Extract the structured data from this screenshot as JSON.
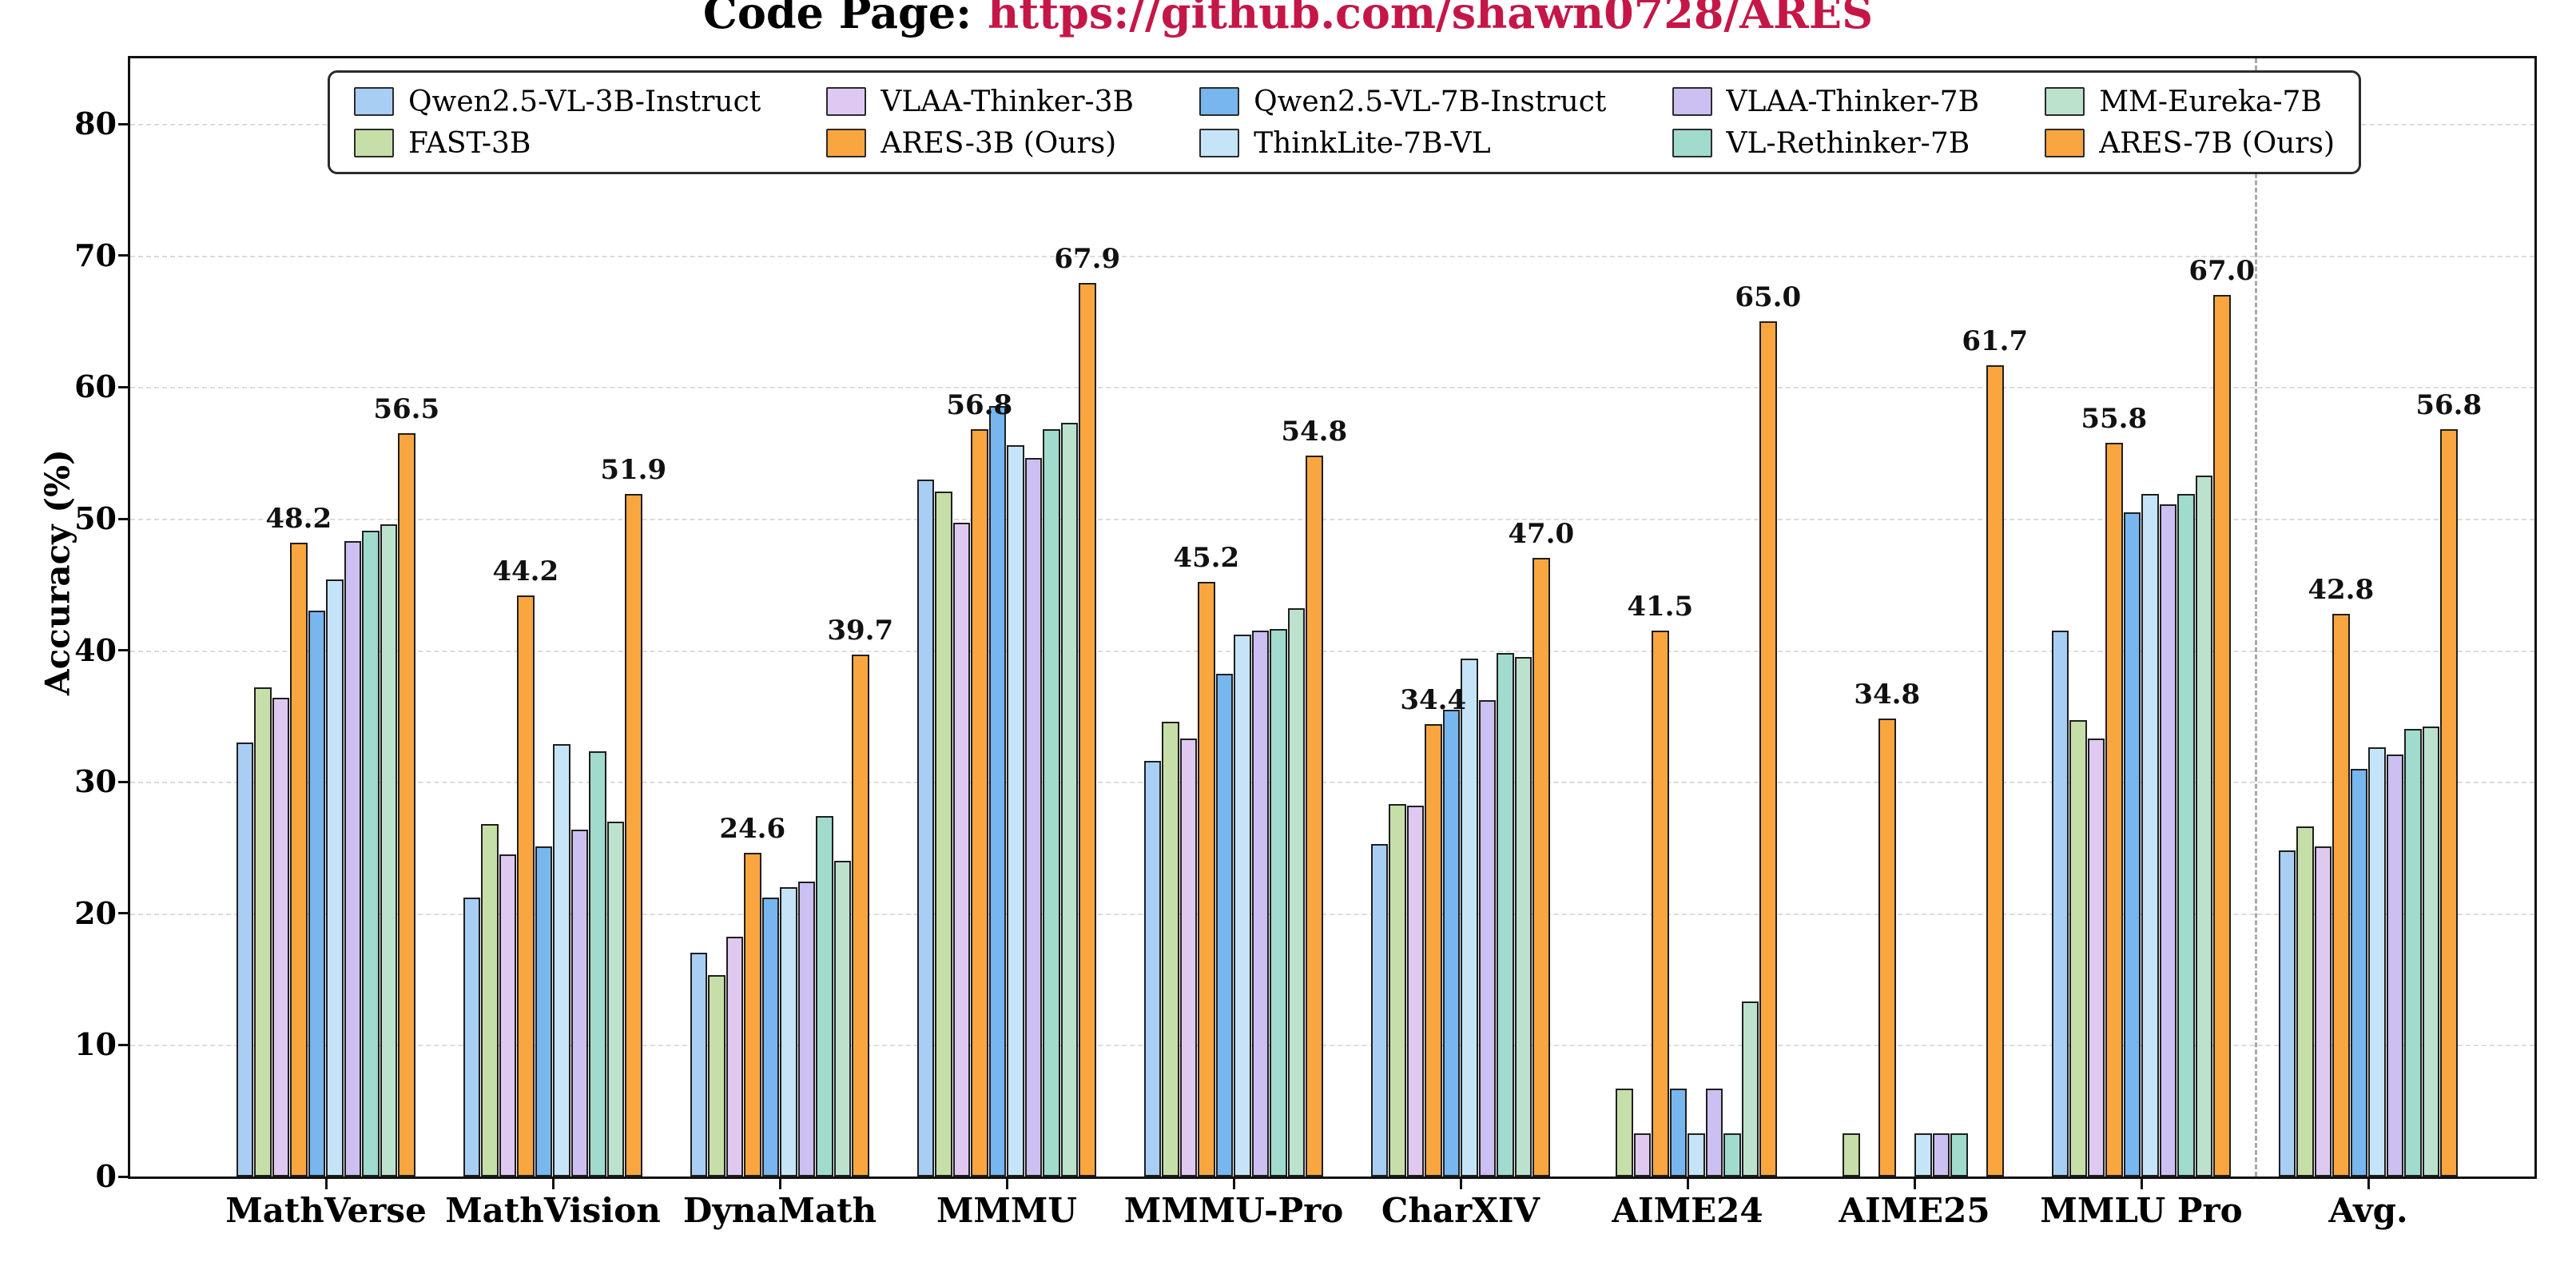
{
  "title": {
    "prefix": "Code Page:",
    "link": "https://github.com/shawn0728/ARES"
  },
  "colors": {
    "title_link": "#C41748",
    "axis": "#111111",
    "grid": "#dcdcdc",
    "separator": "#a8a8a8",
    "bar_edge": "#1f1f1f"
  },
  "chart_data": {
    "type": "bar",
    "title": "Code Page: https://github.com/shawn0728/ARES",
    "ylabel": "Accuracy (%)",
    "ylim": [
      0,
      85
    ],
    "yticks": [
      0,
      10,
      20,
      30,
      40,
      50,
      60,
      70,
      80
    ],
    "grid": true,
    "legend_position": "top-inside",
    "separator_after_category": "MMLU Pro",
    "categories": [
      "MathVerse",
      "MathVision",
      "DynaMath",
      "MMMU",
      "MMMU-Pro",
      "CharXIV",
      "AIME24",
      "AIME25",
      "MMLU Pro",
      "Avg."
    ],
    "series": [
      {
        "name": "Qwen2.5-VL-3B-Instruct",
        "color": "#A9CEF4",
        "annotate": false,
        "values": [
          33.0,
          21.2,
          17.0,
          53.0,
          31.6,
          25.3,
          0.0,
          0.0,
          41.5,
          24.8
        ]
      },
      {
        "name": "FAST-3B",
        "color": "#C6DFA8",
        "annotate": false,
        "values": [
          37.2,
          26.8,
          15.3,
          52.1,
          34.6,
          28.3,
          6.7,
          3.3,
          34.7,
          26.6
        ]
      },
      {
        "name": "VLAA-Thinker-3B",
        "color": "#DFC9F0",
        "annotate": false,
        "values": [
          36.4,
          24.5,
          18.2,
          49.7,
          33.3,
          28.2,
          3.3,
          0.0,
          33.3,
          25.1
        ]
      },
      {
        "name": "ARES-3B (Ours)",
        "color": "#F9A640",
        "annotate": true,
        "values": [
          48.2,
          44.2,
          24.6,
          56.8,
          45.2,
          34.4,
          41.5,
          34.8,
          55.8,
          42.8
        ]
      },
      {
        "name": "Qwen2.5-VL-7B-Instruct",
        "color": "#77B6EE",
        "annotate": false,
        "values": [
          43.0,
          25.1,
          21.2,
          58.6,
          38.2,
          35.5,
          6.7,
          0.0,
          50.5,
          31.0
        ]
      },
      {
        "name": "ThinkLite-7B-VL",
        "color": "#C5E4F8",
        "annotate": false,
        "values": [
          45.4,
          32.9,
          22.0,
          55.6,
          41.2,
          39.4,
          3.3,
          3.3,
          51.9,
          32.6
        ]
      },
      {
        "name": "VLAA-Thinker-7B",
        "color": "#CCC0F2",
        "annotate": false,
        "values": [
          48.3,
          26.4,
          22.4,
          54.6,
          41.5,
          36.2,
          6.7,
          3.3,
          51.1,
          32.1
        ]
      },
      {
        "name": "VL-Rethinker-7B",
        "color": "#A0DBCD",
        "annotate": false,
        "values": [
          49.1,
          32.3,
          27.4,
          56.8,
          41.6,
          39.8,
          3.3,
          3.3,
          51.9,
          34.0
        ]
      },
      {
        "name": "MM-Eureka-7B",
        "color": "#BCE2CD",
        "annotate": false,
        "values": [
          49.6,
          27.0,
          24.0,
          57.3,
          43.2,
          39.5,
          13.3,
          0.0,
          53.3,
          34.2
        ]
      },
      {
        "name": "ARES-7B (Ours)",
        "color": "#F9A640",
        "annotate": true,
        "values": [
          56.5,
          51.9,
          39.7,
          67.9,
          54.8,
          47.0,
          65.0,
          61.7,
          67.0,
          56.8
        ]
      }
    ]
  }
}
